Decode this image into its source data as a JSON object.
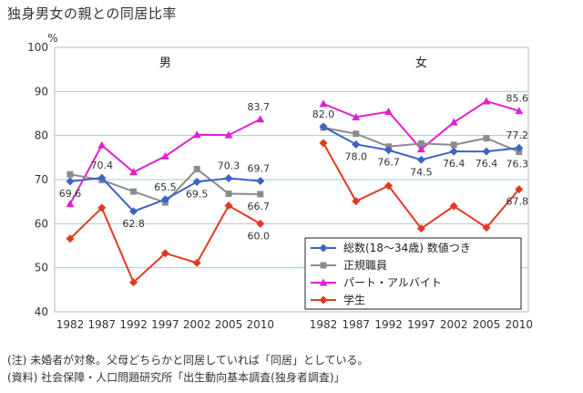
{
  "title": "独身男女の親との同居比率",
  "notes": [
    "(注) 未婚者が対象。父母どちらかと同居していれば「同居」としている。",
    "(資料) 社会保障・人口問題研究所「出生動向基本調査(独身者調査)」"
  ],
  "chart_data": {
    "type": "line",
    "unit_label": "%",
    "ylim": [
      40,
      100
    ],
    "yticks": [
      40,
      50,
      60,
      70,
      80,
      90,
      100
    ],
    "grid": true,
    "legend_position": "bottom-right",
    "categories": [
      "1982",
      "1987",
      "1992",
      "1997",
      "2002",
      "2005",
      "2010"
    ],
    "legend": [
      {
        "name": "総数(18〜34歳) 数値つき",
        "color": "#3b63c4",
        "marker": "diamond"
      },
      {
        "name": "正規職員",
        "color": "#8c8c8c",
        "marker": "square"
      },
      {
        "name": "パート・アルバイト",
        "color": "#e020d0",
        "marker": "triangle"
      },
      {
        "name": "学生",
        "color": "#e23a1e",
        "marker": "diamond"
      }
    ],
    "panels": [
      {
        "label": "男",
        "series": [
          {
            "name": "総数(18〜34歳) 数値つき",
            "values": [
              69.6,
              70.4,
              62.8,
              65.5,
              69.5,
              70.3,
              69.7
            ]
          },
          {
            "name": "正規職員",
            "values": [
              71.2,
              69.9,
              67.3,
              64.8,
              72.4,
              66.8,
              66.7
            ]
          },
          {
            "name": "パート・アルバイト",
            "values": [
              64.5,
              77.8,
              71.7,
              75.3,
              80.2,
              80.1,
              83.7
            ]
          },
          {
            "name": "学生",
            "values": [
              56.6,
              63.6,
              46.7,
              53.3,
              51.1,
              64.1,
              60.0
            ]
          }
        ],
        "data_labels": [
          {
            "text": "69.6",
            "x": "1982",
            "value": 69.6,
            "position": "below"
          },
          {
            "text": "70.4",
            "x": "1987",
            "value": 70.4,
            "position": "above"
          },
          {
            "text": "62.8",
            "x": "1992",
            "value": 62.8,
            "position": "below"
          },
          {
            "text": "65.5",
            "x": "1997",
            "value": 65.5,
            "position": "above"
          },
          {
            "text": "69.5",
            "x": "2002",
            "value": 69.5,
            "position": "below"
          },
          {
            "text": "70.3",
            "x": "2005",
            "value": 70.3,
            "position": "above"
          },
          {
            "text": "69.7",
            "x": "2010",
            "value": 69.7,
            "position": "above"
          },
          {
            "text": "66.7",
            "x": "2010",
            "value": 66.7,
            "position": "below"
          },
          {
            "text": "60.0",
            "x": "2010",
            "value": 60.0,
            "position": "below"
          },
          {
            "text": "83.7",
            "x": "2010",
            "value": 83.7,
            "position": "above"
          }
        ]
      },
      {
        "label": "女",
        "series": [
          {
            "name": "総数(18〜34歳) 数値つき",
            "values": [
              82.0,
              78.0,
              76.7,
              74.5,
              76.4,
              76.4,
              77.2
            ]
          },
          {
            "name": "正規職員",
            "values": [
              81.8,
              80.4,
              77.5,
              78.2,
              77.9,
              79.4,
              76.3
            ]
          },
          {
            "name": "パート・アルバイト",
            "values": [
              87.2,
              84.2,
              85.4,
              76.9,
              83.0,
              87.8,
              85.6
            ]
          },
          {
            "name": "学生",
            "values": [
              78.3,
              65.1,
              68.6,
              58.9,
              64.0,
              59.1,
              67.8
            ]
          }
        ],
        "data_labels": [
          {
            "text": "82.0",
            "x": "1982",
            "value": 82.0,
            "position": "above"
          },
          {
            "text": "78.0",
            "x": "1987",
            "value": 78.0,
            "position": "below"
          },
          {
            "text": "76.7",
            "x": "1992",
            "value": 76.7,
            "position": "below"
          },
          {
            "text": "74.5",
            "x": "1997",
            "value": 74.5,
            "position": "below"
          },
          {
            "text": "76.4",
            "x": "2002",
            "value": 76.4,
            "position": "below"
          },
          {
            "text": "76.4",
            "x": "2005",
            "value": 76.4,
            "position": "below"
          },
          {
            "text": "76.3",
            "x": "2010",
            "value": 76.3,
            "position": "below"
          },
          {
            "text": "77.2",
            "x": "2010",
            "value": 77.2,
            "position": "above"
          },
          {
            "text": "85.6",
            "x": "2010",
            "value": 85.6,
            "position": "above"
          },
          {
            "text": "67.8",
            "x": "2010",
            "value": 67.8,
            "position": "below"
          }
        ]
      }
    ]
  }
}
